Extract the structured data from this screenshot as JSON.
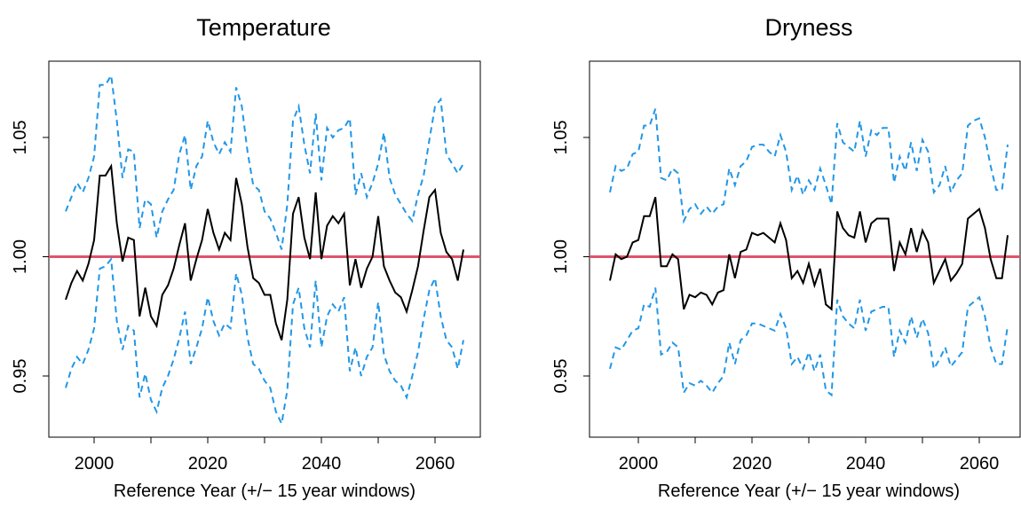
{
  "chart_data": [
    {
      "type": "line",
      "title": "Temperature",
      "xlabel": "Reference Year (+/− 15 year windows)",
      "ylabel": "",
      "xlim": [
        1992.5,
        2067.5
      ],
      "ylim": [
        0.925,
        1.083
      ],
      "x_ticks": [
        2000,
        2020,
        2040,
        2060
      ],
      "x_minor_ticks": [
        2010,
        2030,
        2050
      ],
      "y_ticks": [
        0.95,
        1.0,
        1.05
      ],
      "y_tick_labels": [
        "0.95",
        "1.00",
        "1.05"
      ],
      "reference_line": {
        "y": 1.0,
        "color": "#DF536B"
      },
      "colors": {
        "central": "#000000",
        "bounds": "#2297E6"
      },
      "x": [
        1995,
        1996,
        1997,
        1998,
        1999,
        2000,
        2001,
        2002,
        2003,
        2004,
        2005,
        2006,
        2007,
        2008,
        2009,
        2010,
        2011,
        2012,
        2013,
        2014,
        2015,
        2016,
        2017,
        2018,
        2019,
        2020,
        2021,
        2022,
        2023,
        2024,
        2025,
        2026,
        2027,
        2028,
        2029,
        2030,
        2031,
        2032,
        2033,
        2034,
        2035,
        2036,
        2037,
        2038,
        2039,
        2040,
        2041,
        2042,
        2043,
        2044,
        2045,
        2046,
        2047,
        2048,
        2049,
        2050,
        2051,
        2052,
        2053,
        2054,
        2055,
        2056,
        2057,
        2058,
        2059,
        2060,
        2061,
        2062,
        2063,
        2064,
        2065
      ],
      "series": [
        {
          "role": "upper",
          "style": "dashed",
          "values": [
            1.019,
            1.025,
            1.031,
            1.027,
            1.033,
            1.042,
            1.072,
            1.072,
            1.076,
            1.057,
            1.033,
            1.045,
            1.044,
            1.012,
            1.024,
            1.022,
            1.008,
            1.019,
            1.024,
            1.028,
            1.043,
            1.051,
            1.028,
            1.038,
            1.042,
            1.057,
            1.048,
            1.043,
            1.048,
            1.044,
            1.071,
            1.063,
            1.044,
            1.03,
            1.028,
            1.019,
            1.016,
            1.01,
            1.003,
            1.022,
            1.057,
            1.063,
            1.047,
            1.035,
            1.06,
            1.032,
            1.054,
            1.05,
            1.053,
            1.054,
            1.058,
            1.026,
            1.035,
            1.025,
            1.031,
            1.039,
            1.052,
            1.033,
            1.026,
            1.022,
            1.018,
            1.015,
            1.026,
            1.034,
            1.049,
            1.063,
            1.066,
            1.043,
            1.039,
            1.035,
            1.039
          ]
        },
        {
          "role": "central",
          "style": "solid",
          "values": [
            0.982,
            0.989,
            0.994,
            0.99,
            0.997,
            1.007,
            1.034,
            1.034,
            1.038,
            1.014,
            0.998,
            1.008,
            1.007,
            0.975,
            0.987,
            0.975,
            0.971,
            0.984,
            0.988,
            0.995,
            1.005,
            1.014,
            0.99,
            0.999,
            1.007,
            1.02,
            1.01,
            1.003,
            1.01,
            1.007,
            1.033,
            1.022,
            1.004,
            0.991,
            0.989,
            0.984,
            0.984,
            0.972,
            0.965,
            0.982,
            1.018,
            1.025,
            1.008,
            0.999,
            1.027,
            0.999,
            1.013,
            1.017,
            1.014,
            1.018,
            0.988,
            0.999,
            0.987,
            0.995,
            1.0,
            1.017,
            0.996,
            0.99,
            0.985,
            0.983,
            0.977,
            0.986,
            0.996,
            1.011,
            1.025,
            1.028,
            1.01,
            1.002,
            0.999,
            0.99,
            1.003
          ]
        },
        {
          "role": "lower",
          "style": "dashed",
          "values": [
            0.945,
            0.953,
            0.958,
            0.955,
            0.961,
            0.97,
            0.995,
            0.996,
            0.999,
            0.973,
            0.961,
            0.971,
            0.969,
            0.941,
            0.951,
            0.94,
            0.935,
            0.945,
            0.95,
            0.957,
            0.966,
            0.977,
            0.955,
            0.962,
            0.97,
            0.983,
            0.973,
            0.967,
            0.972,
            0.97,
            0.993,
            0.984,
            0.966,
            0.955,
            0.953,
            0.948,
            0.945,
            0.935,
            0.93,
            0.944,
            0.98,
            0.987,
            0.97,
            0.962,
            0.99,
            0.962,
            0.975,
            0.98,
            0.977,
            0.983,
            0.952,
            0.962,
            0.95,
            0.958,
            0.962,
            0.981,
            0.959,
            0.952,
            0.948,
            0.946,
            0.941,
            0.95,
            0.96,
            0.974,
            0.986,
            0.991,
            0.975,
            0.965,
            0.962,
            0.953,
            0.965
          ]
        }
      ]
    },
    {
      "type": "line",
      "title": "Dryness",
      "xlabel": "Reference Year (+/− 15 year windows)",
      "ylabel": "",
      "xlim": [
        1992.5,
        2067.5
      ],
      "ylim": [
        0.925,
        1.083
      ],
      "x_ticks": [
        2000,
        2020,
        2040,
        2060
      ],
      "x_minor_ticks": [
        2010,
        2030,
        2050
      ],
      "y_ticks": [
        0.95,
        1.0,
        1.05
      ],
      "y_tick_labels": [
        "0.95",
        "1.00",
        "1.05"
      ],
      "reference_line": {
        "y": 1.0,
        "color": "#DF536B"
      },
      "colors": {
        "central": "#000000",
        "bounds": "#2297E6"
      },
      "x": [
        1995,
        1996,
        1997,
        1998,
        1999,
        2000,
        2001,
        2002,
        2003,
        2004,
        2005,
        2006,
        2007,
        2008,
        2009,
        2010,
        2011,
        2012,
        2013,
        2014,
        2015,
        2016,
        2017,
        2018,
        2019,
        2020,
        2021,
        2022,
        2023,
        2024,
        2025,
        2026,
        2027,
        2028,
        2029,
        2030,
        2031,
        2032,
        2033,
        2034,
        2035,
        2036,
        2037,
        2038,
        2039,
        2040,
        2041,
        2042,
        2043,
        2044,
        2045,
        2046,
        2047,
        2048,
        2049,
        2050,
        2051,
        2052,
        2053,
        2054,
        2055,
        2056,
        2057,
        2058,
        2059,
        2060,
        2061,
        2062,
        2063,
        2064,
        2065
      ],
      "series": [
        {
          "role": "upper",
          "style": "dashed",
          "values": [
            1.027,
            1.038,
            1.036,
            1.037,
            1.043,
            1.044,
            1.055,
            1.055,
            1.062,
            1.033,
            1.032,
            1.037,
            1.035,
            1.015,
            1.02,
            1.022,
            1.018,
            1.021,
            1.018,
            1.021,
            1.022,
            1.037,
            1.03,
            1.038,
            1.04,
            1.046,
            1.047,
            1.047,
            1.044,
            1.042,
            1.051,
            1.044,
            1.028,
            1.034,
            1.026,
            1.032,
            1.028,
            1.037,
            1.03,
            1.022,
            1.056,
            1.048,
            1.046,
            1.044,
            1.057,
            1.042,
            1.053,
            1.051,
            1.054,
            1.054,
            1.031,
            1.042,
            1.036,
            1.048,
            1.036,
            1.049,
            1.044,
            1.027,
            1.03,
            1.038,
            1.027,
            1.032,
            1.035,
            1.055,
            1.057,
            1.058,
            1.05,
            1.038,
            1.028,
            1.028,
            1.047
          ]
        },
        {
          "role": "central",
          "style": "solid",
          "values": [
            0.99,
            1.001,
            0.999,
            1.0,
            1.006,
            1.007,
            1.017,
            1.017,
            1.025,
            0.996,
            0.996,
            1.001,
            0.999,
            0.978,
            0.984,
            0.983,
            0.985,
            0.984,
            0.98,
            0.985,
            0.986,
            1.001,
            0.991,
            1.002,
            1.003,
            1.01,
            1.009,
            1.01,
            1.008,
            1.006,
            1.014,
            1.007,
            0.991,
            0.994,
            0.989,
            0.997,
            0.988,
            0.995,
            0.98,
            0.978,
            1.019,
            1.012,
            1.009,
            1.008,
            1.019,
            1.006,
            1.014,
            1.016,
            1.016,
            1.016,
            0.994,
            1.006,
            1.001,
            1.012,
            1.002,
            1.011,
            1.006,
            0.989,
            0.994,
            0.999,
            0.99,
            0.993,
            0.997,
            1.016,
            1.018,
            1.02,
            1.012,
            0.999,
            0.991,
            0.991,
            1.009
          ]
        },
        {
          "role": "lower",
          "style": "dashed",
          "values": [
            0.953,
            0.962,
            0.961,
            0.965,
            0.969,
            0.97,
            0.98,
            0.979,
            0.987,
            0.959,
            0.96,
            0.964,
            0.962,
            0.943,
            0.947,
            0.946,
            0.948,
            0.946,
            0.943,
            0.947,
            0.95,
            0.964,
            0.955,
            0.965,
            0.967,
            0.972,
            0.972,
            0.971,
            0.97,
            0.969,
            0.976,
            0.97,
            0.955,
            0.958,
            0.953,
            0.96,
            0.952,
            0.959,
            0.944,
            0.942,
            0.982,
            0.975,
            0.972,
            0.97,
            0.982,
            0.969,
            0.977,
            0.978,
            0.979,
            0.979,
            0.958,
            0.969,
            0.964,
            0.975,
            0.966,
            0.974,
            0.968,
            0.953,
            0.957,
            0.962,
            0.954,
            0.957,
            0.96,
            0.979,
            0.981,
            0.983,
            0.975,
            0.962,
            0.955,
            0.955,
            0.971
          ]
        }
      ]
    }
  ]
}
